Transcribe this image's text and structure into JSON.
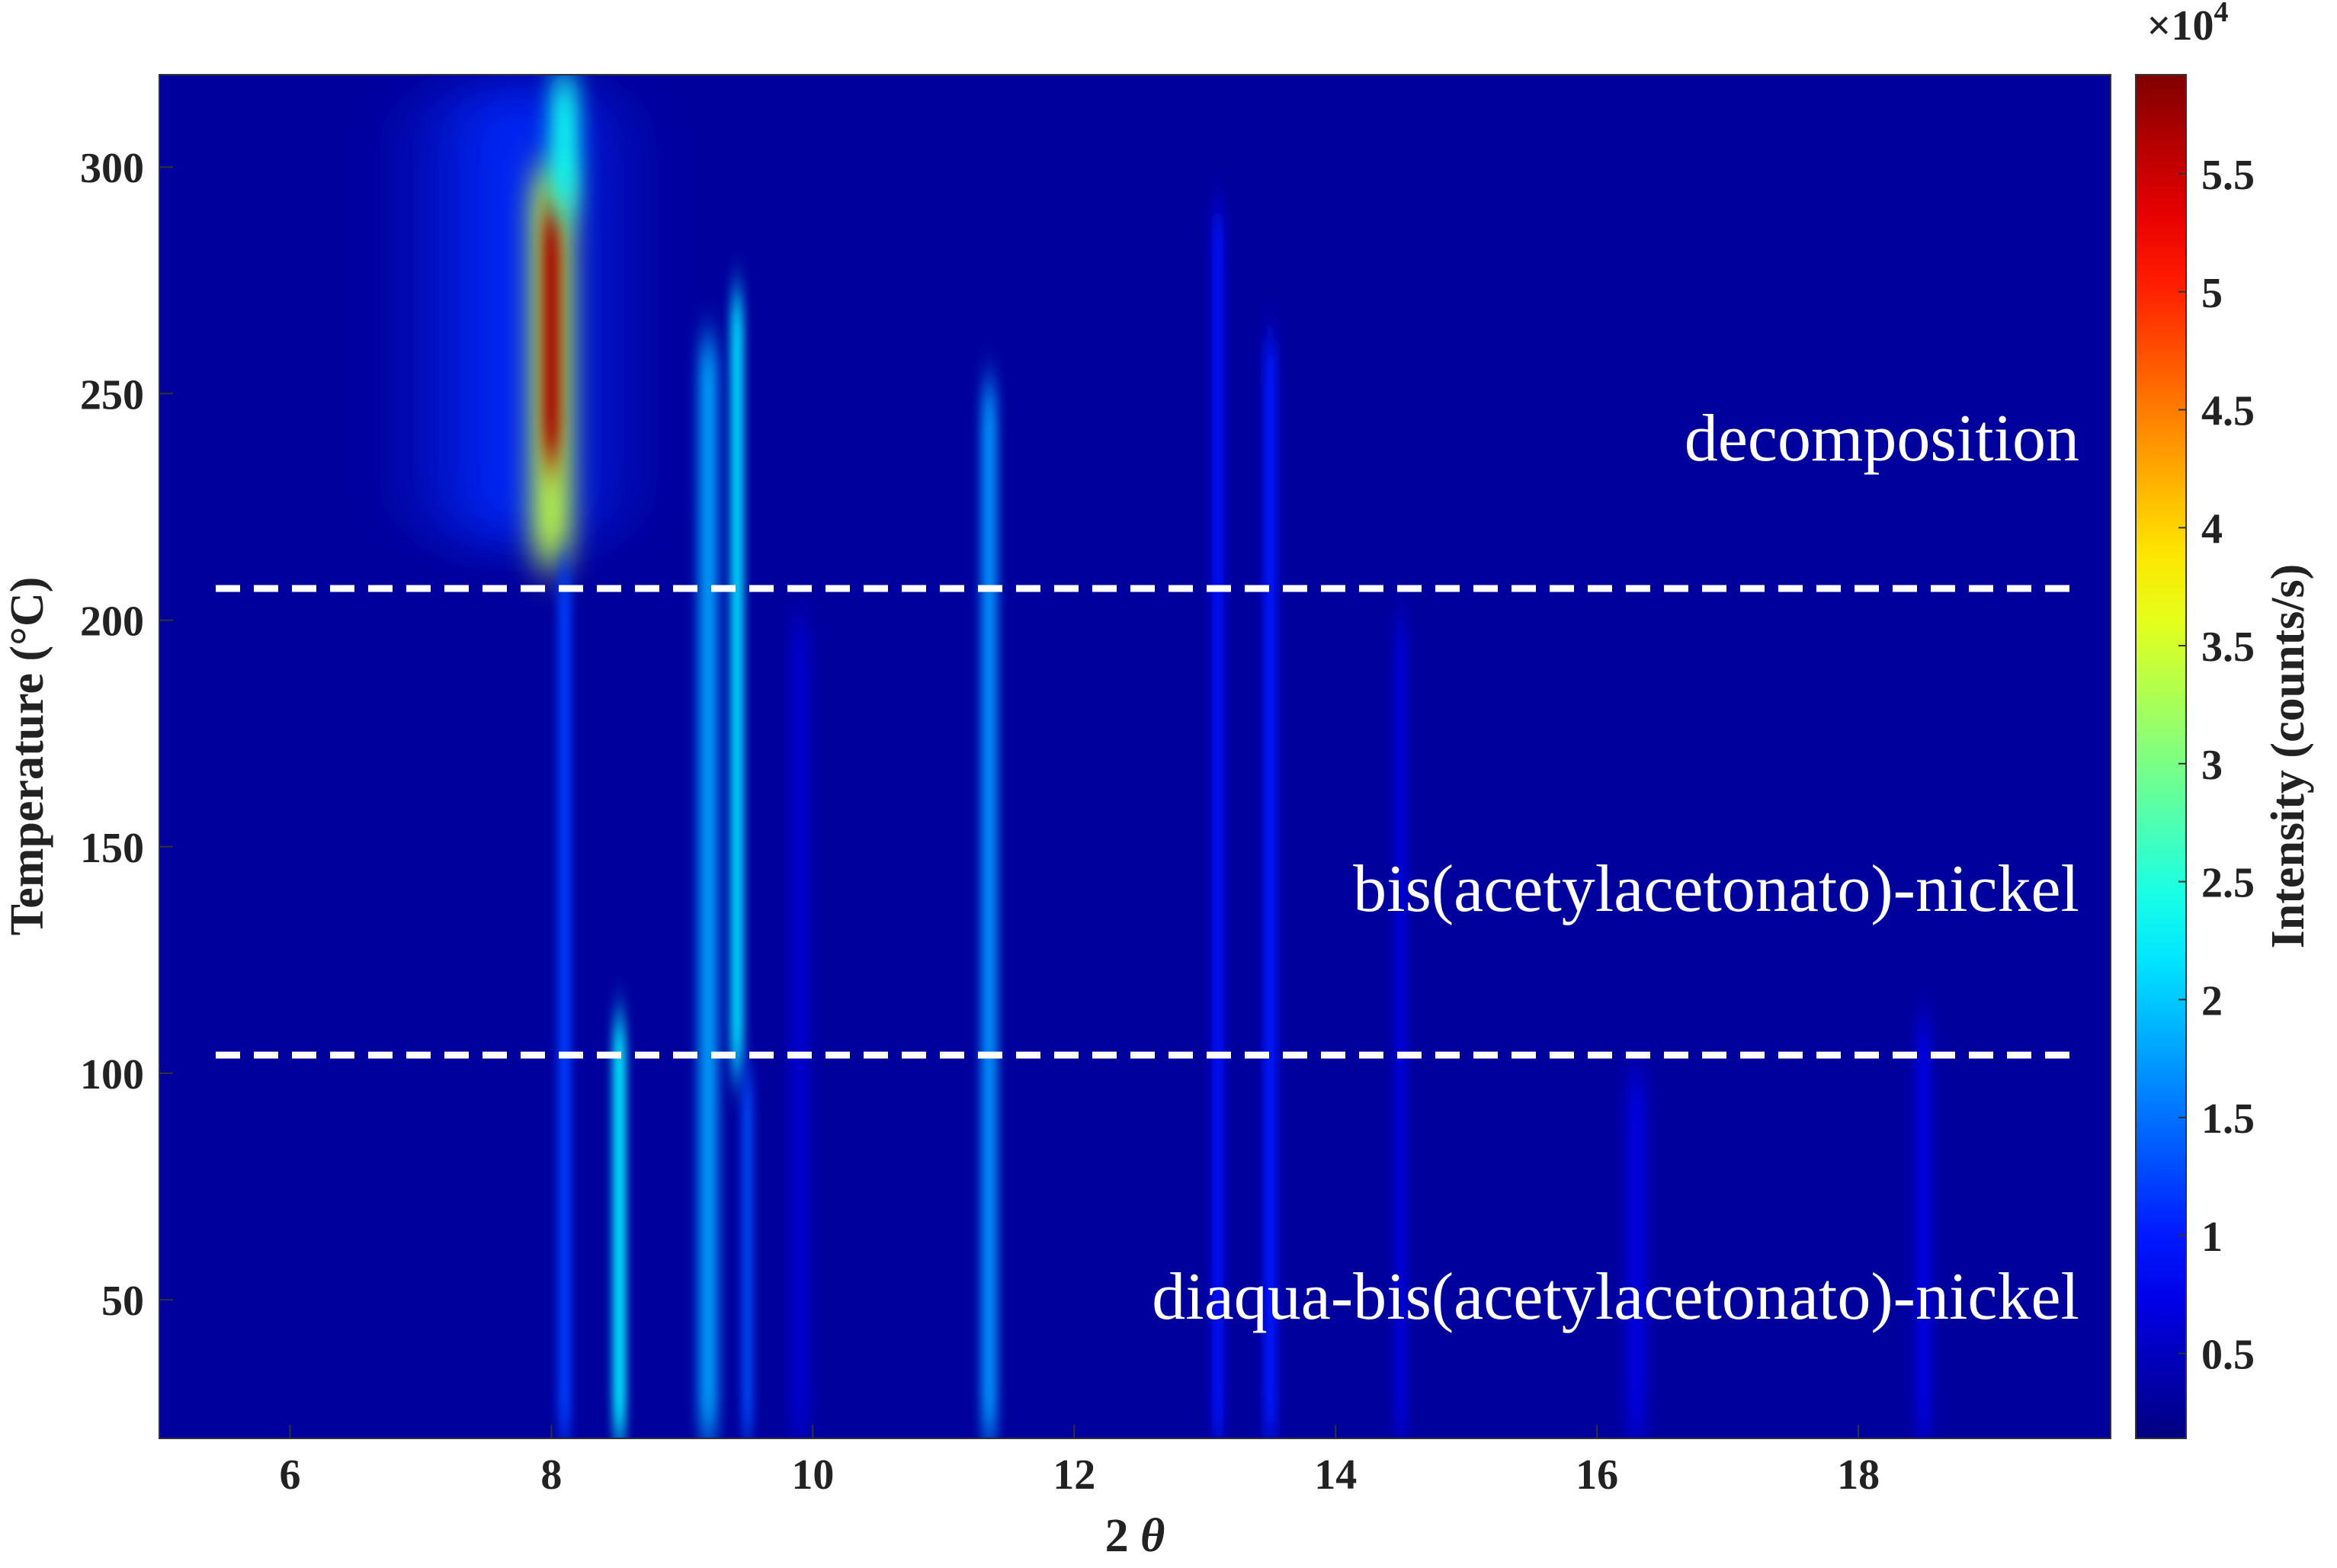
{
  "chart_data": {
    "type": "heatmap",
    "x_label": "2",
    "x_label_symbol": "θ",
    "y_label": "Temperature (°C)",
    "colorbar_label": "Intensity (counts/s)",
    "colorbar_multiplier": "×10",
    "colorbar_exponent": "4",
    "colormap": "jet",
    "xlim": [
      5,
      19.93
    ],
    "xticks": [
      6,
      8,
      10,
      12,
      14,
      16,
      18
    ],
    "ylim": [
      19.4,
      320.4
    ],
    "yticks": [
      50,
      100,
      150,
      200,
      250,
      300
    ],
    "clim": [
      0.14,
      5.92
    ],
    "cticks": [
      0.5,
      1,
      1.5,
      2,
      2.5,
      3,
      3.5,
      4,
      4.5,
      5,
      5.5
    ],
    "background": 0.3,
    "peaks": [
      {
        "x": 7.75,
        "w": 1.1,
        "t": [
          215,
          320
        ],
        "v": 1.1
      },
      {
        "x": 8.0,
        "w": 0.3,
        "t": [
          212,
          300
        ],
        "v": 3.4
      },
      {
        "x": 8.0,
        "w": 0.14,
        "t": [
          235,
          292
        ],
        "v": 5.7
      },
      {
        "x": 8.1,
        "w": 0.22,
        "t": [
          290,
          320.4
        ],
        "v": 2.4
      },
      {
        "x": 8.1,
        "w": 0.1,
        "t": [
          19.4,
          212
        ],
        "v": 1.2
      },
      {
        "x": 8.52,
        "w": 0.1,
        "t": [
          19.4,
          112
        ],
        "v": 2.2
      },
      {
        "x": 9.2,
        "w": 0.14,
        "t": [
          19.4,
          262
        ],
        "v": 1.8
      },
      {
        "x": 9.42,
        "w": 0.1,
        "t": [
          100,
          272
        ],
        "v": 2.1
      },
      {
        "x": 9.5,
        "w": 0.08,
        "t": [
          19.4,
          100
        ],
        "v": 1.3
      },
      {
        "x": 9.9,
        "w": 0.14,
        "t": [
          19.4,
          200
        ],
        "v": 0.6
      },
      {
        "x": 11.35,
        "w": 0.12,
        "t": [
          19.4,
          252
        ],
        "v": 1.7
      },
      {
        "x": 13.1,
        "w": 0.09,
        "t": [
          19.4,
          290
        ],
        "v": 0.9
      },
      {
        "x": 13.5,
        "w": 0.1,
        "t": [
          19.4,
          262
        ],
        "v": 1.0
      },
      {
        "x": 14.5,
        "w": 0.1,
        "t": [
          19.4,
          200
        ],
        "v": 0.65
      },
      {
        "x": 16.3,
        "w": 0.15,
        "t": [
          19.4,
          100
        ],
        "v": 0.7
      },
      {
        "x": 18.5,
        "w": 0.12,
        "t": [
          19.4,
          112
        ],
        "v": 0.7
      }
    ],
    "hlines": [
      207,
      104
    ],
    "annotations": [
      "decomposition",
      "bis(acetylacetonato)-nickel",
      "diaqua-bis(acetylacetonato)-nickel"
    ]
  }
}
